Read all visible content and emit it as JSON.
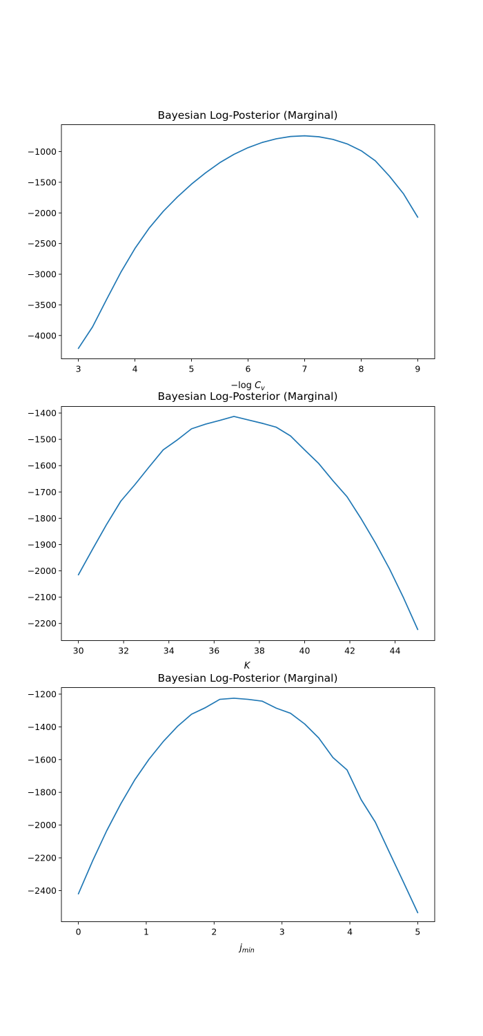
{
  "chart_data": [
    {
      "type": "line",
      "title": "Bayesian Log-Posterior (Marginal)",
      "xlabel": "−log C_v",
      "ylabel": "",
      "xlim": [
        2.7,
        9.3
      ],
      "ylim": [
        -4380,
        -560
      ],
      "xticks": [
        3,
        4,
        5,
        6,
        7,
        8,
        9
      ],
      "yticks": [
        -4000,
        -3500,
        -3000,
        -2500,
        -2000,
        -1500,
        -1000
      ],
      "grid": false,
      "color": "#1f77b4",
      "series": [
        {
          "x": [
            3.0,
            3.25,
            3.5,
            3.75,
            4.0,
            4.25,
            4.5,
            4.75,
            5.0,
            5.25,
            5.5,
            5.75,
            6.0,
            6.25,
            6.5,
            6.75,
            7.0,
            7.25,
            7.5,
            7.75,
            8.0,
            8.25,
            8.5,
            8.75,
            9.0
          ],
          "values": [
            -4210,
            -3860,
            -3410,
            -2970,
            -2580,
            -2250,
            -1975,
            -1740,
            -1530,
            -1345,
            -1180,
            -1045,
            -935,
            -850,
            -790,
            -753,
            -742,
            -757,
            -800,
            -873,
            -985,
            -1150,
            -1400,
            -1690,
            -2070
          ]
        }
      ]
    },
    {
      "type": "line",
      "title": "Bayesian Log-Posterior (Marginal)",
      "xlabel": "K",
      "ylabel": "",
      "xlim": [
        29.25,
        45.75
      ],
      "ylim": [
        -2265,
        -1375
      ],
      "xticks": [
        30,
        32,
        34,
        36,
        38,
        40,
        42,
        44
      ],
      "yticks": [
        -2200,
        -2100,
        -2000,
        -1900,
        -1800,
        -1700,
        -1600,
        -1500,
        -1400
      ],
      "grid": false,
      "color": "#1f77b4",
      "series": [
        {
          "x": [
            30.0,
            30.625,
            31.25,
            31.875,
            32.5,
            33.125,
            33.75,
            34.375,
            35.0,
            35.625,
            36.25,
            36.875,
            37.5,
            38.125,
            38.75,
            39.375,
            40.0,
            40.625,
            41.25,
            41.875,
            42.5,
            43.125,
            43.75,
            44.375,
            45.0
          ],
          "values": [
            -2015,
            -1918,
            -1823,
            -1735,
            -1672,
            -1605,
            -1540,
            -1502,
            -1460,
            -1442,
            -1428,
            -1413,
            -1426,
            -1439,
            -1454,
            -1487,
            -1540,
            -1592,
            -1657,
            -1718,
            -1802,
            -1893,
            -1992,
            -2103,
            -2223
          ]
        }
      ]
    },
    {
      "type": "line",
      "title": "Bayesian Log-Posterior (Marginal)",
      "xlabel": "j_min",
      "ylabel": "",
      "xlim": [
        -0.25,
        5.25
      ],
      "ylim": [
        -2590,
        -1160
      ],
      "xticks": [
        0,
        1,
        2,
        3,
        4,
        5
      ],
      "yticks": [
        -2400,
        -2200,
        -2000,
        -1800,
        -1600,
        -1400,
        -1200
      ],
      "grid": false,
      "color": "#1f77b4",
      "series": [
        {
          "x": [
            0.0,
            0.2083,
            0.4167,
            0.625,
            0.8333,
            1.0417,
            1.25,
            1.4583,
            1.6667,
            1.875,
            2.0833,
            2.2917,
            2.5,
            2.7083,
            2.9167,
            3.125,
            3.3333,
            3.5417,
            3.75,
            3.9583,
            4.1667,
            4.375,
            4.5833,
            4.7917,
            5.0
          ],
          "values": [
            -2420,
            -2220,
            -2035,
            -1870,
            -1722,
            -1597,
            -1490,
            -1398,
            -1323,
            -1282,
            -1232,
            -1225,
            -1232,
            -1243,
            -1286,
            -1317,
            -1382,
            -1468,
            -1587,
            -1663,
            -1845,
            -1982,
            -2167,
            -2350,
            -2535
          ]
        }
      ]
    }
  ]
}
